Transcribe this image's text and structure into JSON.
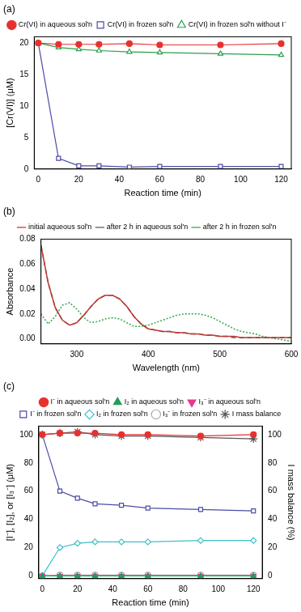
{
  "chart_data": [
    {
      "type": "line",
      "title": "(a)",
      "x_label": "Reaction time (min)",
      "y_label": "[Cr(VI)] (μM)",
      "x": [
        0,
        10,
        20,
        30,
        45,
        60,
        90,
        120
      ],
      "xlim": [
        -2,
        125
      ],
      "xticks": [
        0,
        20,
        40,
        60,
        80,
        100,
        120
      ],
      "ylim": [
        0,
        21
      ],
      "yticks": [
        0,
        5,
        10,
        15,
        20
      ],
      "grid": false,
      "legend": "top",
      "series": [
        {
          "name": "Cr(VI) in aqueous sol'n",
          "color": "#e8312f",
          "marker": "circle",
          "line_style": "solid",
          "values": [
            20,
            19.8,
            19.8,
            19.8,
            19.9,
            19.7,
            19.7,
            19.9
          ]
        },
        {
          "name": "Cr(VI) in frozen sol'n",
          "color": "#4b4ba8",
          "marker": "open-square",
          "line_style": "solid",
          "values": [
            20,
            1.7,
            0.5,
            0.5,
            0.3,
            0.4,
            0.4,
            0.4
          ]
        },
        {
          "name": "Cr(VI) in frozen sol'n without I⁻",
          "color": "#2e9e4f",
          "marker": "open-triangle",
          "line_style": "solid",
          "values": [
            20,
            19.3,
            19,
            18.8,
            18.6,
            18.5,
            18.3,
            18.1
          ]
        }
      ]
    },
    {
      "type": "line",
      "title": "(b)",
      "x_label": "Wavelength (nm)",
      "y_label": "Absorbance",
      "x": [
        250,
        260,
        270,
        280,
        290,
        300,
        310,
        320,
        330,
        340,
        350,
        360,
        370,
        380,
        390,
        400,
        410,
        420,
        430,
        440,
        450,
        460,
        470,
        480,
        490,
        500,
        510,
        520,
        530,
        540,
        550,
        560,
        570,
        580,
        590,
        600
      ],
      "xlim": [
        250,
        600
      ],
      "xticks": [
        300,
        400,
        500,
        600
      ],
      "ylim": [
        -0.004,
        0.08
      ],
      "yticks": [
        {
          "value": 0,
          "label": "0.00"
        },
        {
          "value": 0.02,
          "label": "0.02"
        },
        {
          "value": 0.04,
          "label": "0.04"
        },
        {
          "value": 0.06,
          "label": "0.06"
        },
        {
          "value": 0.08,
          "label": "0.08"
        }
      ],
      "grid": false,
      "legend": "top",
      "series": [
        {
          "name": "initial aqueous sol'n",
          "color": "#c0392b",
          "marker": "none",
          "line_style": "solid",
          "values": [
            0.075,
            0.045,
            0.025,
            0.015,
            0.011,
            0.013,
            0.019,
            0.026,
            0.032,
            0.035,
            0.035,
            0.032,
            0.026,
            0.018,
            0.012,
            0.008,
            0.007,
            0.006,
            0.006,
            0.005,
            0.005,
            0.004,
            0.004,
            0.003,
            0.003,
            0.002,
            0.002,
            0.002,
            0.001,
            0.001,
            0.001,
            0.001,
            0.001,
            0.001,
            0.001,
            0.001
          ]
        },
        {
          "name": "after 2 h in aqueous sol'n",
          "color": "#555577",
          "marker": "none",
          "line_style": "dashed",
          "values": [
            0.075,
            0.045,
            0.025,
            0.015,
            0.011,
            0.013,
            0.019,
            0.026,
            0.032,
            0.035,
            0.035,
            0.032,
            0.026,
            0.018,
            0.012,
            0.008,
            0.007,
            0.006,
            0.006,
            0.005,
            0.005,
            0.004,
            0.004,
            0.003,
            0.003,
            0.002,
            0.002,
            0.001,
            0.001,
            0.001,
            0.001,
            0.001,
            0.001,
            0.001,
            0.001,
            0.001
          ]
        },
        {
          "name": "after 2 h in frozen sol'n",
          "color": "#2ea84a",
          "marker": "none",
          "line_style": "dotted",
          "values": [
            0.02,
            0.012,
            0.018,
            0.027,
            0.029,
            0.024,
            0.017,
            0.013,
            0.014,
            0.016,
            0.017,
            0.016,
            0.013,
            0.01,
            0.01,
            0.011,
            0.013,
            0.015,
            0.017,
            0.019,
            0.02,
            0.02,
            0.02,
            0.019,
            0.017,
            0.014,
            0.011,
            0.008,
            0.006,
            0.005,
            0.004,
            0.002,
            0.001,
            0,
            -0.001,
            -0.002
          ]
        }
      ]
    },
    {
      "type": "line",
      "title": "(c)",
      "x_label": "Reaction time (min)",
      "y_label": "[I⁻], [I₂], or [I₃⁻] (μM)",
      "y2_label": "I mass balance (%)",
      "x": [
        0,
        10,
        20,
        30,
        45,
        60,
        90,
        120
      ],
      "xlim": [
        -2,
        125
      ],
      "xticks": [
        0,
        20,
        40,
        60,
        80,
        100,
        120
      ],
      "ylim": [
        -2,
        106
      ],
      "yticks": [
        0,
        20,
        40,
        60,
        80,
        100
      ],
      "y2lim": [
        -2,
        106
      ],
      "y2ticks": [
        0,
        20,
        40,
        60,
        80,
        100
      ],
      "grid": false,
      "legend": "top",
      "series": [
        {
          "name": "I⁻ in aqueous sol'n",
          "color": "#e8312f",
          "marker": "circle",
          "line_style": "solid",
          "values": [
            100,
            101,
            101,
            101,
            100,
            100,
            99,
            100
          ]
        },
        {
          "name": "I₂ in aqueous sol'n",
          "color": "#1e9e5a",
          "marker": "triangle",
          "line_style": "solid",
          "values": [
            0,
            0,
            0,
            0,
            0,
            0,
            0,
            0
          ]
        },
        {
          "name": "I₃⁻ in aqueous sol'n",
          "color": "#e8388a",
          "marker": "triangle-down",
          "line_style": "solid",
          "values": [
            0,
            0,
            0,
            0,
            0,
            0,
            0,
            0
          ]
        },
        {
          "name": "I⁻ in frozen sol'n",
          "color": "#4b4ba8",
          "marker": "open-square",
          "line_style": "solid",
          "values": [
            100,
            60,
            55,
            51,
            50,
            48,
            47,
            46
          ]
        },
        {
          "name": "I₂ in frozen sol'n",
          "color": "#3cc0cc",
          "marker": "open-diamond",
          "line_style": "solid",
          "values": [
            0,
            20,
            23,
            24,
            24,
            24,
            25,
            25
          ]
        },
        {
          "name": "I₃⁻ in frozen sol'n",
          "color": "#aaaaaa",
          "marker": "open-circle",
          "line_style": "solid",
          "values": [
            0,
            0.5,
            0.5,
            0.5,
            0.5,
            0.5,
            0.5,
            0.5
          ]
        },
        {
          "name": "I mass balance",
          "color": "#555555",
          "marker": "open-star",
          "line_style": "solid",
          "axis": "y2",
          "values": [
            100,
            101,
            102,
            100,
            99,
            99,
            98,
            97
          ]
        }
      ]
    }
  ]
}
